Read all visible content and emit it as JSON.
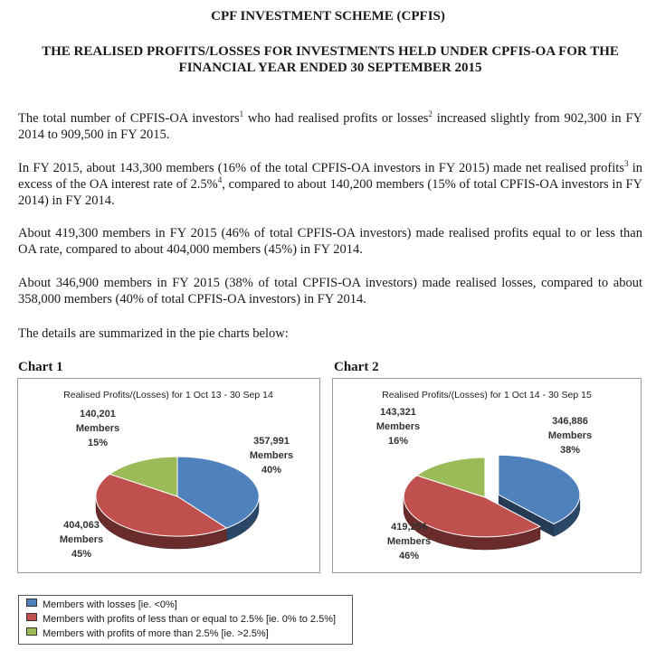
{
  "document": {
    "title": "CPF INVESTMENT SCHEME (CPFIS)",
    "subtitle": "THE REALISED PROFITS/LOSSES FOR INVESTMENTS HELD UNDER CPFIS-OA FOR THE FINANCIAL YEAR ENDED 30 SEPTEMBER 2015"
  },
  "paragraphs": [
    {
      "parts": [
        "The total number of CPFIS-OA investors",
        "1",
        " who had realised profits or losses",
        "2",
        " increased slightly from 902,300 in FY 2014 to 909,500 in FY 2015."
      ]
    },
    {
      "parts": [
        "In FY 2015, about 143,300 members (16% of the total CPFIS-OA investors in FY 2015) made net realised profits",
        "3",
        " in excess of the OA interest rate of 2.5%",
        "4",
        ", compared to about 140,200 members (15% of total CPFIS-OA investors in FY 2014) in FY 2014."
      ]
    },
    {
      "parts": [
        "About 419,300 members in FY 2015 (46% of total CPFIS-OA investors) made realised profits equal to or less than OA rate, compared to about 404,000 members (45%) in FY 2014."
      ]
    },
    {
      "parts": [
        "About 346,900 members in FY 2015 (38% of total CPFIS-OA investors) made realised losses, compared to about 358,000 members (40% of total CPFIS-OA investors) in FY 2014."
      ]
    },
    {
      "parts": [
        "The details are summarized in the pie charts below:"
      ]
    }
  ],
  "colors": {
    "losses": "#4f81bd",
    "profits_le": "#c0504d",
    "profits_gt": "#9bbb59"
  },
  "chart_data": [
    {
      "type": "pie",
      "heading": "Chart 1",
      "title": "Realised Profits/(Losses) for 1 Oct 13 - 30 Sep 14",
      "labels": [
        "Members with losses [ie. <0%]",
        "Members with profits of less than or equal to 2.5% [ie. 0% to 2.5%]",
        "Members with profits of more than 2.5% [ie. >2.5%]"
      ],
      "values": [
        357991,
        404063,
        140201
      ],
      "value_text": [
        "357,991",
        "404,063",
        "140,201"
      ],
      "unit_text": [
        "Members",
        "Members",
        "Members"
      ],
      "percent_text": [
        "40%",
        "45%",
        "15%"
      ],
      "exploded": false
    },
    {
      "type": "pie",
      "heading": "Chart 2",
      "title": "Realised Profits/(Losses) for 1 Oct 14 - 30 Sep 15",
      "labels": [
        "Members with losses [ie. <0%]",
        "Members with profits of less than or equal to 2.5% [ie. 0% to 2.5%]",
        "Members with profits of more than 2.5% [ie. >2.5%]"
      ],
      "values": [
        346886,
        419256,
        143321
      ],
      "value_text": [
        "346,886",
        "419,256",
        "143,321"
      ],
      "unit_text": [
        "Members",
        "Members",
        "Members"
      ],
      "percent_text": [
        "38%",
        "46%",
        "16%"
      ],
      "exploded": true
    }
  ],
  "legend": [
    {
      "label": "Members with losses [ie. <0%]",
      "color": "#4f81bd"
    },
    {
      "label": "Members with profits of less than or equal to 2.5% [ie. 0% to 2.5%]",
      "color": "#c0504d"
    },
    {
      "label": "Members with profits of more than 2.5% [ie. >2.5%]",
      "color": "#9bbb59"
    }
  ]
}
